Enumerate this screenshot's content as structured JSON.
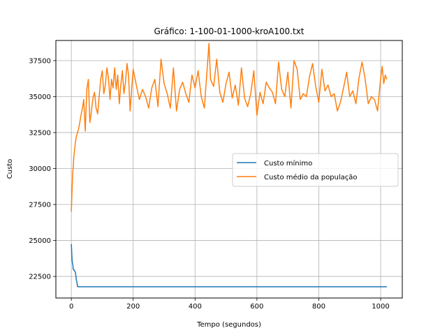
{
  "chart_data": {
    "type": "line",
    "title": "Gráfico: 1-100-01-1000-kroA100.txt",
    "xlabel": "Tempo (segundos)",
    "ylabel": "Custo",
    "xlim": [
      -50,
      1070
    ],
    "ylim": [
      21000,
      38900
    ],
    "xticks": [
      0,
      200,
      400,
      600,
      800,
      1000
    ],
    "yticks": [
      22500,
      25000,
      27500,
      30000,
      32500,
      35000,
      37500
    ],
    "grid": true,
    "legend_position": "center-right",
    "series": [
      {
        "name": "Custo mínimo",
        "color": "#1f77b4",
        "x": [
          0,
          1,
          2,
          3,
          5,
          6,
          8,
          9,
          10,
          13,
          15,
          16,
          18,
          19,
          20,
          22,
          25,
          30,
          60,
          100,
          200,
          300,
          400,
          500,
          600,
          700,
          800,
          900,
          1000,
          1020
        ],
        "y": [
          24750,
          24300,
          23800,
          23500,
          23300,
          23000,
          22950,
          22950,
          22900,
          22800,
          22500,
          22300,
          22100,
          21950,
          21800,
          21780,
          21780,
          21780,
          21780,
          21780,
          21780,
          21780,
          21780,
          21780,
          21780,
          21780,
          21780,
          21780,
          21780,
          21780
        ]
      },
      {
        "name": "Custo médio da população",
        "color": "#ff7f0e",
        "x": [
          0,
          2,
          4,
          6,
          8,
          10,
          13,
          16,
          20,
          24,
          28,
          32,
          36,
          40,
          45,
          50,
          55,
          60,
          65,
          70,
          75,
          80,
          85,
          90,
          95,
          100,
          105,
          110,
          115,
          120,
          125,
          130,
          135,
          140,
          145,
          150,
          155,
          160,
          165,
          170,
          175,
          180,
          185,
          190,
          195,
          200,
          210,
          220,
          230,
          240,
          250,
          260,
          270,
          280,
          290,
          300,
          310,
          320,
          330,
          340,
          350,
          360,
          370,
          380,
          390,
          400,
          410,
          420,
          430,
          440,
          445,
          450,
          460,
          470,
          480,
          490,
          500,
          510,
          520,
          530,
          540,
          550,
          560,
          570,
          580,
          590,
          600,
          610,
          620,
          630,
          640,
          650,
          660,
          670,
          680,
          690,
          700,
          710,
          720,
          730,
          740,
          750,
          760,
          770,
          780,
          790,
          800,
          810,
          820,
          830,
          840,
          850,
          860,
          870,
          880,
          890,
          900,
          910,
          920,
          930,
          940,
          950,
          960,
          970,
          980,
          990,
          1000,
          1005,
          1010,
          1015,
          1020
        ],
        "y": [
          27000,
          28300,
          29500,
          30100,
          30800,
          31200,
          31800,
          32200,
          32500,
          32800,
          33300,
          33800,
          34200,
          34800,
          32600,
          35500,
          36200,
          33200,
          34000,
          34900,
          35300,
          34200,
          33800,
          35000,
          36200,
          36800,
          35200,
          35800,
          37000,
          36300,
          34800,
          36200,
          35600,
          37000,
          35500,
          36500,
          34500,
          35800,
          36800,
          35200,
          36000,
          37300,
          36500,
          34000,
          35500,
          36900,
          35800,
          34800,
          35500,
          35000,
          34200,
          35600,
          36200,
          34300,
          37600,
          35900,
          35200,
          34200,
          37000,
          34000,
          35500,
          36000,
          35200,
          34600,
          36500,
          35600,
          36800,
          35000,
          34200,
          37200,
          38700,
          36200,
          35700,
          37600,
          35300,
          34600,
          35900,
          36700,
          34900,
          35800,
          34400,
          37000,
          34900,
          34300,
          35200,
          36800,
          33700,
          35300,
          34500,
          36000,
          35600,
          35300,
          34500,
          37400,
          35500,
          35000,
          36700,
          34200,
          37500,
          36900,
          34800,
          35200,
          35000,
          36400,
          37300,
          35700,
          34600,
          36900,
          35400,
          35800,
          35000,
          35200,
          34000,
          34600,
          35600,
          36700,
          35000,
          35400,
          34500,
          36300,
          37400,
          36200,
          34500,
          35000,
          34800,
          34000,
          36300,
          37100,
          35900,
          36500,
          36200
        ]
      }
    ]
  }
}
